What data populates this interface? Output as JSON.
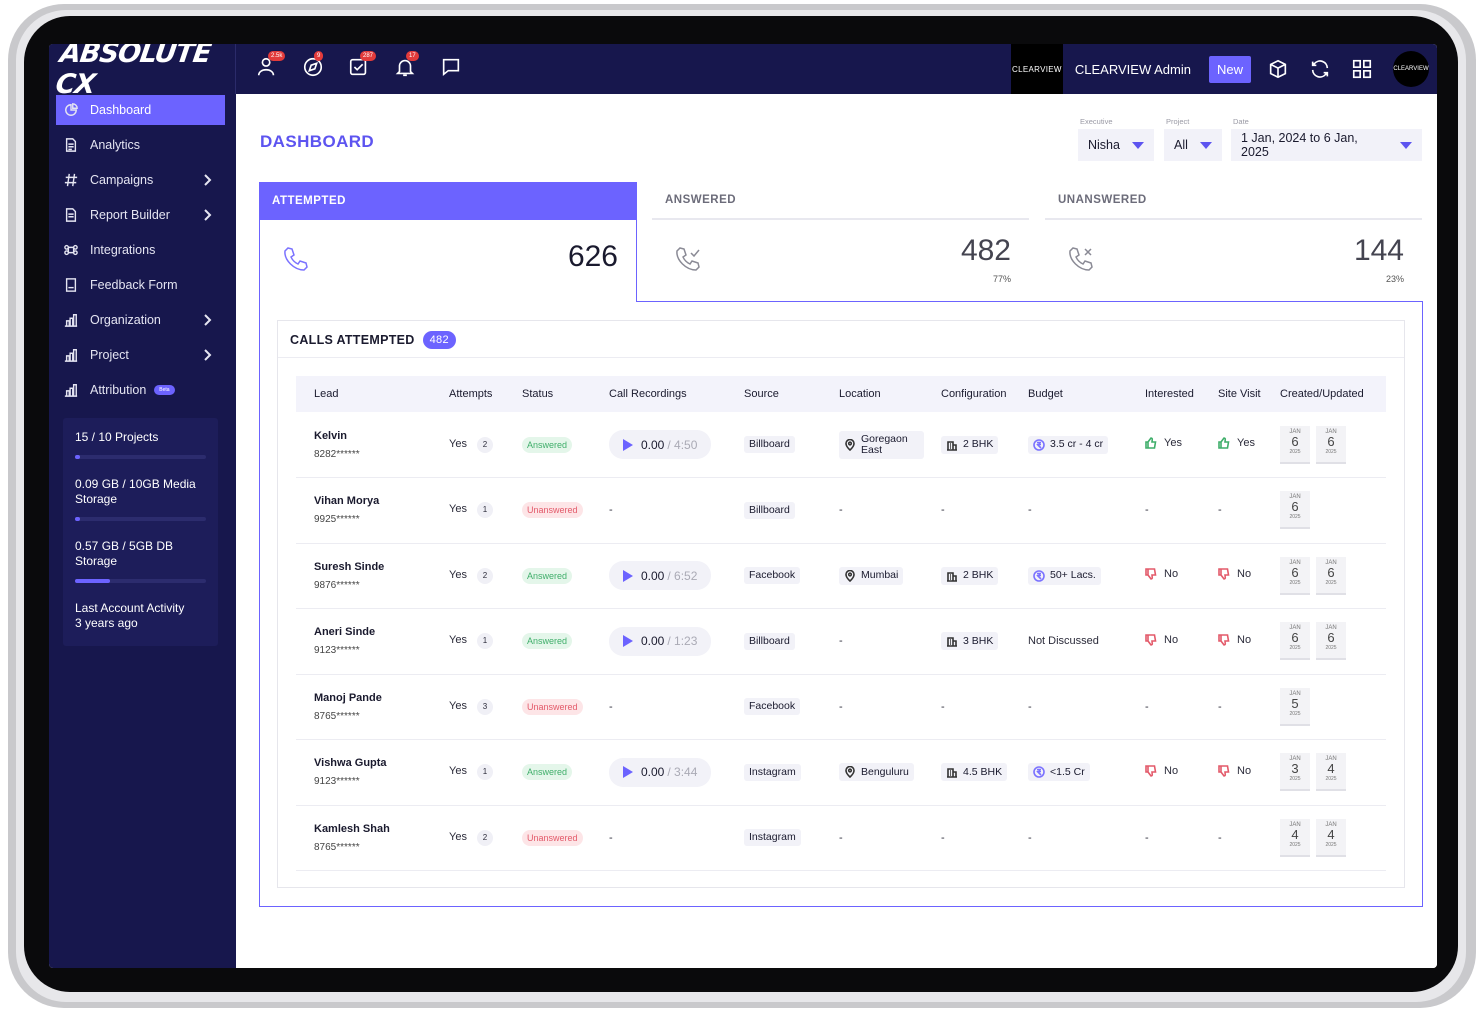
{
  "header": {
    "logo_text": "ABSOLUTE CX",
    "top_icons": [
      {
        "icon": "user-icon",
        "badge": "2.5k"
      },
      {
        "icon": "compass-icon",
        "badge": "9"
      },
      {
        "icon": "checkbox-icon",
        "badge": "287"
      },
      {
        "icon": "bell-icon",
        "badge": "17"
      },
      {
        "icon": "chat-icon",
        "badge": ""
      }
    ],
    "company_logo_text": "CLEARVIEW",
    "admin_name": "CLEARVIEW Admin",
    "new_label": "New",
    "avatar_text": "CLEARVIEW"
  },
  "sidebar": {
    "items": [
      {
        "label": "Dashboard",
        "icon": "pie-chart-icon",
        "active": true,
        "chevron": false
      },
      {
        "label": "Analytics",
        "icon": "document-icon",
        "active": false,
        "chevron": false
      },
      {
        "label": "Campaigns",
        "icon": "hash-icon",
        "active": false,
        "chevron": true
      },
      {
        "label": "Report Builder",
        "icon": "report-icon",
        "active": false,
        "chevron": true
      },
      {
        "label": "Integrations",
        "icon": "command-icon",
        "active": false,
        "chevron": false
      },
      {
        "label": "Feedback Form",
        "icon": "form-icon",
        "active": false,
        "chevron": false
      },
      {
        "label": "Organization",
        "icon": "bar-chart-icon",
        "active": false,
        "chevron": true
      },
      {
        "label": "Project",
        "icon": "bar-chart-icon",
        "active": false,
        "chevron": true
      },
      {
        "label": "Attribution",
        "icon": "bar-chart-icon",
        "active": false,
        "chevron": false,
        "badge": "Beta"
      }
    ],
    "usage": {
      "projects": "15 / 10 Projects",
      "projects_fill": 0.04,
      "media": "0.09 GB / 10GB Media Storage",
      "media_fill": 0.04,
      "db": "0.57 GB / 5GB DB Storage",
      "db_fill": 0.27,
      "activity_label": "Last Account Activity",
      "activity_value": "3 years ago"
    }
  },
  "main": {
    "title": "DASHBOARD",
    "filters": {
      "executive": {
        "label": "Executive",
        "value": "Nisha"
      },
      "project": {
        "label": "Project",
        "value": "All"
      },
      "date": {
        "label": "Date",
        "value": "1 Jan, 2024 to 6 Jan, 2025"
      }
    },
    "cards": {
      "attempted": {
        "title": "ATTEMPTED",
        "value": "626"
      },
      "answered": {
        "title": "ANSWERED",
        "value": "482",
        "pct": "77%"
      },
      "unanswered": {
        "title": "UNANSWERED",
        "value": "144",
        "pct": "23%"
      }
    },
    "calls": {
      "title": "CALLS ATTEMPTED",
      "count": "482",
      "columns": [
        "Lead",
        "Attempts",
        "Status",
        "Call Recordings",
        "Source",
        "Location",
        "Configuration",
        "Budget",
        "Interested",
        "Site Visit",
        "Created/Updated"
      ],
      "rows": [
        {
          "name": "Kelvin",
          "phone": "8282******",
          "attempt": "Yes",
          "attempt_n": "2",
          "status": "Answered",
          "rec_time": "0.00",
          "rec_dur": "/ 4:50",
          "source": "Billboard",
          "location": "Goregaon East",
          "config": "2 BHK",
          "budget": "3.5 cr - 4 cr",
          "interested": "Yes",
          "site_visit": "Yes",
          "dates": [
            {
              "m": "JAN",
              "d": "6",
              "y": "2025"
            },
            {
              "m": "JAN",
              "d": "6",
              "y": "2025"
            }
          ]
        },
        {
          "name": "Vihan Morya",
          "phone": "9925******",
          "attempt": "Yes",
          "attempt_n": "1",
          "status": "Unanswered",
          "rec_time": "-",
          "rec_dur": "",
          "source": "Billboard",
          "location": "-",
          "config": "-",
          "budget": "-",
          "interested": "-",
          "site_visit": "-",
          "dates": [
            {
              "m": "JAN",
              "d": "6",
              "y": "2025"
            }
          ]
        },
        {
          "name": "Suresh Sinde",
          "phone": "9876******",
          "attempt": "Yes",
          "attempt_n": "2",
          "status": "Answered",
          "rec_time": "0.00",
          "rec_dur": "/ 6:52",
          "source": "Facebook",
          "location": "Mumbai",
          "config": "2 BHK",
          "budget": "50+ Lacs.",
          "interested": "No",
          "site_visit": "No",
          "dates": [
            {
              "m": "JAN",
              "d": "6",
              "y": "2025"
            },
            {
              "m": "JAN",
              "d": "6",
              "y": "2025"
            }
          ]
        },
        {
          "name": "Aneri Sinde",
          "phone": "9123******",
          "attempt": "Yes",
          "attempt_n": "1",
          "status": "Answered",
          "rec_time": "0.00",
          "rec_dur": "/ 1:23",
          "source": "Billboard",
          "location": "-",
          "config": "3 BHK",
          "budget": "Not Discussed",
          "interested": "No",
          "site_visit": "No",
          "dates": [
            {
              "m": "JAN",
              "d": "6",
              "y": "2025"
            },
            {
              "m": "JAN",
              "d": "6",
              "y": "2025"
            }
          ]
        },
        {
          "name": "Manoj Pande",
          "phone": "8765******",
          "attempt": "Yes",
          "attempt_n": "3",
          "status": "Unanswered",
          "rec_time": "-",
          "rec_dur": "",
          "source": "Facebook",
          "location": "-",
          "config": "-",
          "budget": "-",
          "interested": "-",
          "site_visit": "-",
          "dates": [
            {
              "m": "JAN",
              "d": "5",
              "y": "2025"
            }
          ]
        },
        {
          "name": "Vishwa Gupta",
          "phone": "9123******",
          "attempt": "Yes",
          "attempt_n": "1",
          "status": "Answered",
          "rec_time": "0.00",
          "rec_dur": "/ 3:44",
          "source": "Instagram",
          "location": "Benguluru",
          "config": "4.5 BHK",
          "budget": "<1.5 Cr",
          "interested": "No",
          "site_visit": "No",
          "dates": [
            {
              "m": "JAN",
              "d": "3",
              "y": "2025"
            },
            {
              "m": "JAN",
              "d": "4",
              "y": "2025"
            }
          ]
        },
        {
          "name": "Kamlesh Shah",
          "phone": "8765******",
          "attempt": "Yes",
          "attempt_n": "2",
          "status": "Unanswered",
          "rec_time": "-",
          "rec_dur": "",
          "source": "Instagram",
          "location": "-",
          "config": "-",
          "budget": "-",
          "interested": "-",
          "site_visit": "-",
          "dates": [
            {
              "m": "JAN",
              "d": "4",
              "y": "2025"
            },
            {
              "m": "JAN",
              "d": "4",
              "y": "2025"
            }
          ]
        }
      ]
    }
  },
  "colors": {
    "navy": "#17174d",
    "accent": "#6c63ff",
    "answered": "#3fae6a",
    "unanswered": "#e35a6a"
  }
}
